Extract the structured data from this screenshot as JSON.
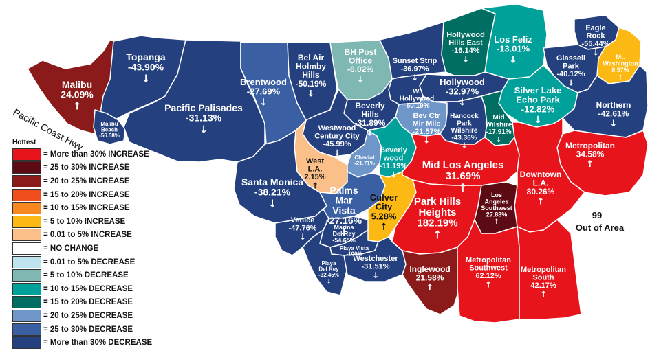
{
  "legend": {
    "title": "Hottest",
    "items": [
      {
        "label": "= More than 30% INCREASE",
        "color": "#e8141c"
      },
      {
        "label": "= 25 to 30% INCREASE",
        "color": "#5c0a14"
      },
      {
        "label": "= 20 to 25% INCREASE",
        "color": "#8b1a1a"
      },
      {
        "label": "= 15 to 20% INCREASE",
        "color": "#f04e1c"
      },
      {
        "label": "= 10 to 15% INCREASE",
        "color": "#f7881f"
      },
      {
        "label": "= 5 to 10% INCREASE",
        "color": "#fdb913"
      },
      {
        "label": "= 0.01 to 5% INCREASE",
        "color": "#fbc08a"
      },
      {
        "label": "= NO CHANGE",
        "color": "#ffffff"
      },
      {
        "label": "= 0.01 to 5% DECREASE",
        "color": "#bfe4ef"
      },
      {
        "label": "= 5 to 10% DECREASE",
        "color": "#7fb8b3"
      },
      {
        "label": "= 10 to 15% DECREASE",
        "color": "#00a19a"
      },
      {
        "label": "= 15 to 20% DECREASE",
        "color": "#006e62"
      },
      {
        "label": "= 20 to 25% DECREASE",
        "color": "#6f96c9"
      },
      {
        "label": "= 25 to 30% DECREASE",
        "color": "#3a5fa3"
      },
      {
        "label": "= More than 30% DECREASE",
        "color": "#24407f"
      }
    ]
  },
  "coast_label": "Pacific Coast  Hwy",
  "out_of_area": {
    "number": "99",
    "label": "Out of Area"
  },
  "regions": [
    {
      "id": "malibu",
      "name": [
        "Malibu"
      ],
      "pct": "24.09%",
      "arrow": "↑",
      "color": "#8b1a1a"
    },
    {
      "id": "topanga",
      "name": [
        "Topanga"
      ],
      "pct": "-43.90%",
      "arrow": "↓",
      "color": "#24407f"
    },
    {
      "id": "malibu-beach",
      "name": [
        "Malibu",
        "Beach"
      ],
      "pct": "-56.58%",
      "arrow": "",
      "color": "#24407f"
    },
    {
      "id": "pacific-palisades",
      "name": [
        "Pacific Palisades"
      ],
      "pct": "-31.13%",
      "arrow": "↓",
      "color": "#24407f"
    },
    {
      "id": "brentwood",
      "name": [
        "Brentwood"
      ],
      "pct": "-27.69%",
      "arrow": "↓",
      "color": "#3a5fa3"
    },
    {
      "id": "bel-air",
      "name": [
        "Bel Air",
        "Holmby",
        "Hills"
      ],
      "pct": "-50.19%",
      "arrow": "↓",
      "color": "#24407f"
    },
    {
      "id": "bh-post-office",
      "name": [
        "BH Post",
        "Office"
      ],
      "pct": "-6.02%",
      "arrow": "↓",
      "color": "#7fb8b3"
    },
    {
      "id": "hollywood-hills-east",
      "name": [
        "Hollywood",
        "Hills East"
      ],
      "pct": "-16.14%",
      "arrow": "↓",
      "color": "#006e62"
    },
    {
      "id": "los-feliz",
      "name": [
        "Los Feliz"
      ],
      "pct": "-13.01%",
      "arrow": "↓",
      "color": "#00a19a"
    },
    {
      "id": "eagle-rock",
      "name": [
        "Eagle",
        "Rock"
      ],
      "pct": "-55.44%",
      "arrow": "↓",
      "color": "#24407f"
    },
    {
      "id": "mt-washington",
      "name": [
        "Mt.",
        "Washington"
      ],
      "pct": "8.57%",
      "arrow": "↑",
      "color": "#fdb913"
    },
    {
      "id": "glassell-park",
      "name": [
        "Glassell",
        "Park"
      ],
      "pct": "-40.12%",
      "arrow": "↓",
      "color": "#24407f"
    },
    {
      "id": "sunset-strip",
      "name": [
        "Sunset Strip"
      ],
      "pct": "-36.97%",
      "arrow": "↓",
      "color": "#24407f"
    },
    {
      "id": "hollywood",
      "name": [
        "Hollywood"
      ],
      "pct": "-32.97%",
      "arrow": "↓",
      "color": "#24407f"
    },
    {
      "id": "w-hollywood",
      "name": [
        "W.",
        "Hollywood"
      ],
      "pct": "-50.19%",
      "arrow": "",
      "color": "#24407f"
    },
    {
      "id": "silver-lake",
      "name": [
        "Silver Lake",
        "Echo Park"
      ],
      "pct": "-12.82%",
      "arrow": "↓",
      "color": "#00a19a"
    },
    {
      "id": "northern",
      "name": [
        "Northern"
      ],
      "pct": "-42.61%",
      "arrow": "↓",
      "color": "#24407f"
    },
    {
      "id": "beverly-hills",
      "name": [
        "Beverly",
        "Hills"
      ],
      "pct": "-31.89%",
      "arrow": "↓",
      "color": "#24407f"
    },
    {
      "id": "westwood",
      "name": [
        "Westwood",
        "Century City"
      ],
      "pct": "-45.99%",
      "arrow": "↓",
      "color": "#24407f"
    },
    {
      "id": "bev-ctr",
      "name": [
        "Bev Ctr",
        "Mir Mile"
      ],
      "pct": "-21.57%",
      "arrow": "↓",
      "color": "#6f96c9"
    },
    {
      "id": "hancock-park",
      "name": [
        "Hancock",
        "Park",
        "Wilshire"
      ],
      "pct": "-43.36%",
      "arrow": "↓",
      "color": "#24407f"
    },
    {
      "id": "mid-wilshire",
      "name": [
        "Mid",
        "Wilshire"
      ],
      "pct": "-17.91%",
      "arrow": "↓",
      "color": "#006e62"
    },
    {
      "id": "metropolitan",
      "name": [
        "Metropolitan"
      ],
      "pct": "34.58%",
      "arrow": "↑",
      "color": "#e8141c"
    },
    {
      "id": "west-la",
      "name": [
        "West",
        "L.A."
      ],
      "pct": "2.15%",
      "arrow": "↑",
      "color": "#fbc08a",
      "dark": true
    },
    {
      "id": "cheviot",
      "name": [
        "Cheviot"
      ],
      "pct": "-21.71%",
      "arrow": "",
      "color": "#6f96c9"
    },
    {
      "id": "beverlywood",
      "name": [
        "Beverly",
        "wood"
      ],
      "pct": "-11.19%",
      "arrow": "↓",
      "color": "#00a19a"
    },
    {
      "id": "mid-los-angeles",
      "name": [
        "Mid Los Angeles"
      ],
      "pct": "31.69%",
      "arrow": "↑",
      "color": "#e8141c"
    },
    {
      "id": "downtown-la",
      "name": [
        "Downtown",
        "L.A."
      ],
      "pct": "80.26%",
      "arrow": "↑",
      "color": "#e8141c"
    },
    {
      "id": "santa-monica",
      "name": [
        "Santa Monica"
      ],
      "pct": "-38.21%",
      "arrow": "↓",
      "color": "#24407f"
    },
    {
      "id": "palms",
      "name": [
        "Palms",
        "Mar",
        "Vista"
      ],
      "pct": "-27.16%",
      "arrow": "↓",
      "color": "#3a5fa3"
    },
    {
      "id": "culver-city",
      "name": [
        "Culver",
        "City"
      ],
      "pct": "5.28%",
      "arrow": "↑",
      "color": "#fdb913",
      "dark": true
    },
    {
      "id": "park-hills",
      "name": [
        "Park Hills",
        "Heights"
      ],
      "pct": "182.19%",
      "arrow": "↑",
      "color": "#e8141c"
    },
    {
      "id": "la-southwest",
      "name": [
        "Los",
        "Angeles",
        "Southwest"
      ],
      "pct": "27.88%",
      "arrow": "↑",
      "color": "#5c0a14"
    },
    {
      "id": "venice",
      "name": [
        "Venice"
      ],
      "pct": "-47.76%",
      "arrow": "↓",
      "color": "#24407f"
    },
    {
      "id": "marina",
      "name": [
        "Marina",
        "Del Rey"
      ],
      "pct": "-54.65%",
      "arrow": "",
      "color": "#24407f"
    },
    {
      "id": "playa-vista",
      "name": [
        "Playa Vista"
      ],
      "pct": "-100%",
      "arrow": "",
      "color": "#24407f"
    },
    {
      "id": "playa-del-rey",
      "name": [
        "Playa",
        "Del Rey"
      ],
      "pct": "-32.45%",
      "arrow": "↓",
      "color": "#24407f"
    },
    {
      "id": "westchester",
      "name": [
        "Westchester"
      ],
      "pct": "-31.51%",
      "arrow": "↓",
      "color": "#24407f"
    },
    {
      "id": "inglewood",
      "name": [
        "Inglewood"
      ],
      "pct": "21.58%",
      "arrow": "↑",
      "color": "#8b1a1a"
    },
    {
      "id": "metro-southwest",
      "name": [
        "Metropolitan",
        "Southwest"
      ],
      "pct": "62.12%",
      "arrow": "↑",
      "color": "#e8141c"
    },
    {
      "id": "metro-south",
      "name": [
        "Metropolitan",
        "South"
      ],
      "pct": "42.17%",
      "arrow": "↑",
      "color": "#e8141c"
    }
  ]
}
